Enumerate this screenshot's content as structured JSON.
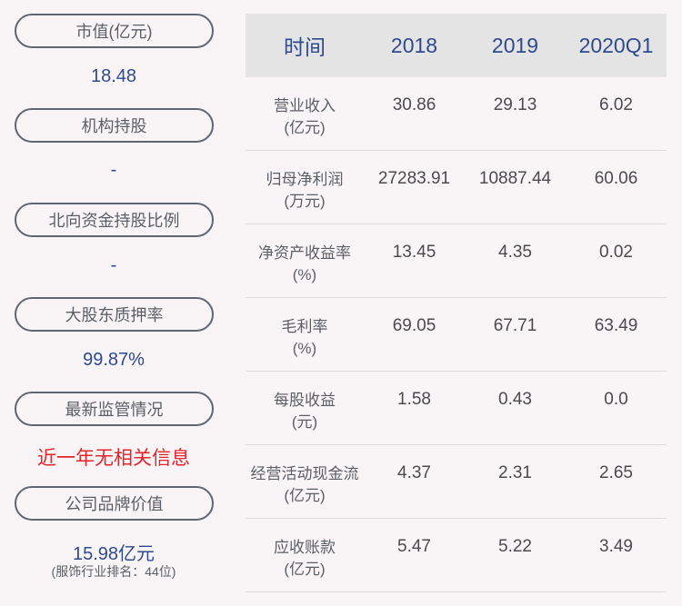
{
  "left_panel": {
    "items": [
      {
        "label": "市值(亿元)",
        "value": "18.48"
      },
      {
        "label": "机构持股",
        "value": "-"
      },
      {
        "label": "北向资金持股比例",
        "value": "-"
      },
      {
        "label": "大股东质押率",
        "value": "99.87%"
      },
      {
        "label": "最新监管情况",
        "value": "近一年无相关信息"
      },
      {
        "label": "公司品牌价值",
        "value": "15.98亿元",
        "note": "(服饰行业排名：44位)"
      }
    ]
  },
  "table": {
    "headers": [
      "时间",
      "2018",
      "2019",
      "2020Q1"
    ],
    "rows": [
      {
        "label": "营业收入",
        "unit": "(亿元)",
        "values": [
          "30.86",
          "29.13",
          "6.02"
        ]
      },
      {
        "label": "归母净利润",
        "unit": "(万元)",
        "values": [
          "27283.91",
          "10887.44",
          "60.06"
        ]
      },
      {
        "label": "净资产收益率",
        "unit": "(%)",
        "values": [
          "13.45",
          "4.35",
          "0.02"
        ]
      },
      {
        "label": "毛利率",
        "unit": "(%)",
        "values": [
          "69.05",
          "67.71",
          "63.49"
        ]
      },
      {
        "label": "每股收益",
        "unit": "(元)",
        "values": [
          "1.58",
          "0.43",
          "0.0"
        ]
      },
      {
        "label": "经营活动现金流",
        "unit": "(亿元)",
        "values": [
          "4.37",
          "2.31",
          "2.65"
        ]
      },
      {
        "label": "应收账款",
        "unit": "(亿元)",
        "values": [
          "5.47",
          "5.22",
          "3.49"
        ]
      }
    ]
  },
  "colors": {
    "accent_blue": "#2e4a8f",
    "alert_red": "#e3242b",
    "header_bg": "#e4e4e5",
    "page_bg": "#f9f5f6"
  }
}
